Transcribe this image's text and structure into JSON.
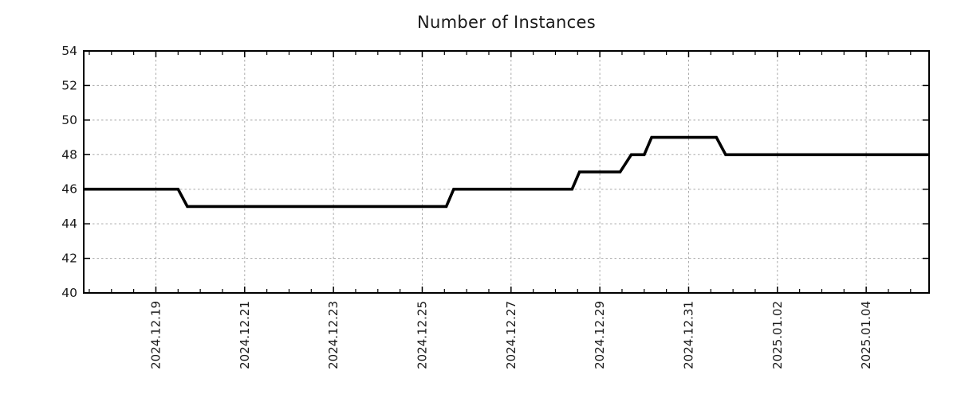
{
  "chart_data": {
    "type": "line",
    "subtype": "step-monitoring-graph",
    "title": "Number of Instances",
    "grid": {
      "show": true,
      "style": "dashed"
    },
    "legend": {
      "show": false
    },
    "colors": {
      "line": "#000000",
      "border": "#000000",
      "grid": "#a8a8a8",
      "text": "#1a1a1a",
      "background": "#ffffff"
    },
    "y_axis": {
      "min": 40,
      "max": 54,
      "tick_step": 2,
      "tick_labels": [
        "40",
        "42",
        "44",
        "46",
        "48",
        "50",
        "52",
        "54"
      ]
    },
    "x_axis": {
      "major_tick_labels": [
        "2024.12.19",
        "2024.12.21",
        "2024.12.23",
        "2024.12.25",
        "2024.12.27",
        "2024.12.29",
        "2024.12.31",
        "2025.01.02",
        "2025.01.04"
      ],
      "minor_tick_interval_hours": 12
    },
    "series": [
      {
        "name": "instances",
        "color": "#000000",
        "points": [
          [
            "2024-12-17T09:00",
            46
          ],
          [
            "2024-12-19T12:00",
            46
          ],
          [
            "2024-12-19T17:00",
            45
          ],
          [
            "2024-12-25T13:00",
            45
          ],
          [
            "2024-12-25T17:00",
            46
          ],
          [
            "2024-12-28T09:00",
            46
          ],
          [
            "2024-12-28T13:00",
            47
          ],
          [
            "2024-12-29T11:00",
            47
          ],
          [
            "2024-12-29T17:00",
            48
          ],
          [
            "2024-12-30T00:00",
            48
          ],
          [
            "2024-12-30T04:00",
            49
          ],
          [
            "2024-12-31T15:00",
            49
          ],
          [
            "2024-12-31T20:00",
            48
          ],
          [
            "2025-01-05T10:00",
            48
          ]
        ]
      }
    ]
  }
}
